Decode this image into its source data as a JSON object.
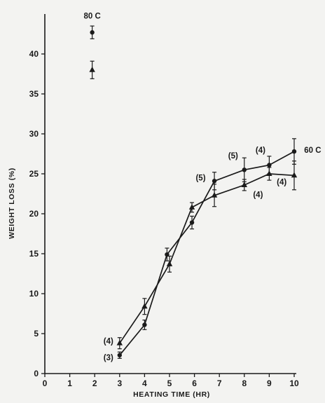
{
  "chart_data": {
    "type": "line",
    "xlabel": "HEATING TIME (HR)",
    "ylabel": "WEIGHT LOSS (%)",
    "xlim": [
      0,
      10
    ],
    "ylim": [
      0,
      45
    ],
    "xticks": [
      0,
      1,
      2,
      3,
      4,
      5,
      6,
      7,
      8,
      9,
      10
    ],
    "yticks": [
      0,
      5,
      10,
      15,
      20,
      25,
      30,
      35,
      40
    ],
    "grid": false,
    "series": [
      {
        "name": "60 C",
        "marker": "circle",
        "points": [
          {
            "x": 3,
            "y": 2.3,
            "err": 0.4
          },
          {
            "x": 4,
            "y": 6.1,
            "err": 0.6
          },
          {
            "x": 4.9,
            "y": 14.9,
            "err": 0.8
          },
          {
            "x": 5.9,
            "y": 18.9,
            "err": 0.8
          },
          {
            "x": 6.8,
            "y": 24.1,
            "err": 1.1
          },
          {
            "x": 8,
            "y": 25.5,
            "err": 1.5
          },
          {
            "x": 9,
            "y": 26.1,
            "err": 1.1
          },
          {
            "x": 10,
            "y": 27.8,
            "err": 1.6
          }
        ]
      },
      {
        "name": "",
        "marker": "triangle",
        "points": [
          {
            "x": 3,
            "y": 3.8,
            "err": 0.7
          },
          {
            "x": 4,
            "y": 8.4,
            "err": 1.0
          },
          {
            "x": 5,
            "y": 13.7,
            "err": 1.0
          },
          {
            "x": 5.9,
            "y": 20.8,
            "err": 0.6
          },
          {
            "x": 6.8,
            "y": 22.3,
            "err": 1.4
          },
          {
            "x": 8,
            "y": 23.6,
            "err": 0.7
          },
          {
            "x": 9,
            "y": 25.0,
            "err": 0.8
          },
          {
            "x": 10,
            "y": 24.8,
            "err": 1.8
          }
        ]
      },
      {
        "name": "80 C",
        "marker": "circle",
        "points": [
          {
            "x": 1.9,
            "y": 42.7,
            "err": 0.8
          }
        ]
      },
      {
        "name": "",
        "marker": "triangle",
        "points": [
          {
            "x": 1.9,
            "y": 38.0,
            "err": 1.1
          }
        ]
      }
    ],
    "annotations": [
      {
        "text": "80 C",
        "x": 1.9,
        "y": 44.8
      },
      {
        "text": "60 C",
        "x": 10.4,
        "y": 28.0
      },
      {
        "text": "(4)",
        "x": 2.55,
        "y": 4.1
      },
      {
        "text": "(3)",
        "x": 2.55,
        "y": 2.0
      },
      {
        "text": "(5)",
        "x": 6.25,
        "y": 24.5
      },
      {
        "text": "(5)",
        "x": 7.55,
        "y": 27.3
      },
      {
        "text": "(4)",
        "x": 8.65,
        "y": 28.0
      },
      {
        "text": "(4)",
        "x": 8.55,
        "y": 22.4
      },
      {
        "text": "(4)",
        "x": 9.5,
        "y": 24.0
      }
    ]
  }
}
